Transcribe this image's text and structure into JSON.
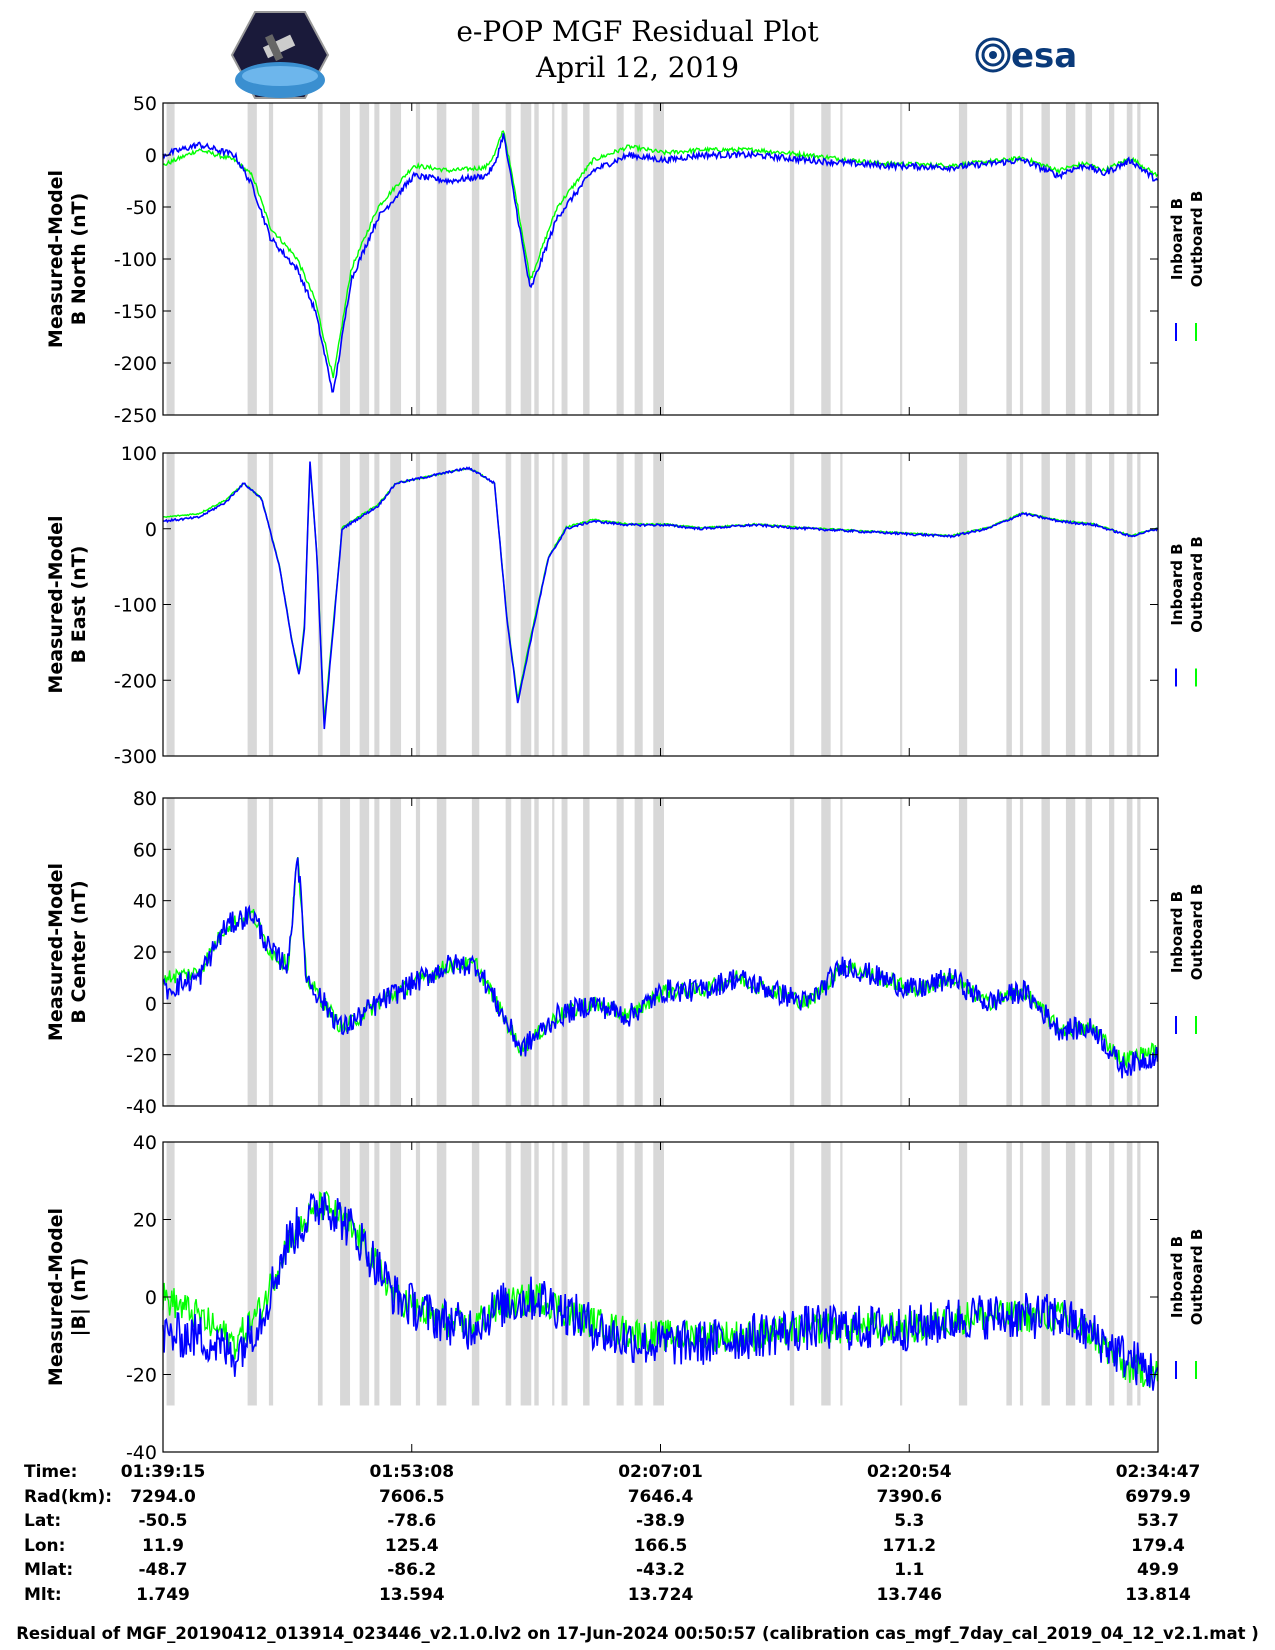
{
  "title": {
    "line1": "e-POP MGF Residual Plot",
    "line2": "April 12, 2019"
  },
  "logos": {
    "left_icon": "cassiope-mission-logo-icon",
    "right_icon": "esa-logo-icon",
    "right_text": "esa"
  },
  "colors": {
    "inboard": "#0000ff",
    "outboard": "#00ff00",
    "gap_shading": "#d8d8d8",
    "axis": "#000000"
  },
  "legend": {
    "inboard": "Inboard B",
    "outboard": "Outboard B"
  },
  "time_axis": {
    "start": "01:39:15",
    "end": "02:34:47",
    "tick_labels": [
      "01:39:15",
      "01:53:08",
      "02:07:01",
      "02:20:54",
      "02:34:47"
    ]
  },
  "chart_data": [
    {
      "type": "line",
      "ylabel": [
        "Measured-Model",
        "B North (nT)"
      ],
      "ylim": [
        -250,
        50
      ],
      "yticks": [
        50,
        0,
        -50,
        -100,
        -150,
        -200,
        -250
      ],
      "x_unit": "minutes since 01:39:15",
      "series": [
        {
          "name": "Inboard B",
          "x": [
            0,
            2,
            4,
            5,
            6,
            7.5,
            8.5,
            9.5,
            10.5,
            12,
            14,
            16,
            18,
            18.5,
            19,
            19.8,
            20.5,
            22,
            24,
            26,
            28,
            30,
            33,
            36,
            40,
            44,
            48,
            50,
            50.5,
            51.5,
            52.5,
            54,
            55.5
          ],
          "values": [
            0,
            10,
            0,
            -30,
            -80,
            -110,
            -150,
            -230,
            -120,
            -60,
            -20,
            -25,
            -20,
            -10,
            20,
            -60,
            -130,
            -60,
            -15,
            0,
            -5,
            0,
            0,
            -5,
            -10,
            -12,
            -5,
            -20,
            -15,
            -10,
            -18,
            -5,
            -25
          ]
        },
        {
          "name": "Outboard B",
          "x": [
            0,
            2,
            4,
            5,
            6,
            7.5,
            8.5,
            9.5,
            10.5,
            12,
            14,
            16,
            18,
            18.5,
            19,
            19.8,
            20.5,
            22,
            24,
            26,
            28,
            30,
            33,
            36,
            40,
            44,
            48,
            50,
            50.5,
            51.5,
            52.5,
            54,
            55.5
          ],
          "values": [
            -10,
            5,
            -5,
            -20,
            -70,
            -100,
            -140,
            -215,
            -110,
            -50,
            -10,
            -15,
            -12,
            0,
            25,
            -50,
            -120,
            -50,
            -5,
            8,
            2,
            5,
            5,
            0,
            -8,
            -10,
            -3,
            -15,
            -12,
            -8,
            -15,
            -3,
            -20
          ]
        }
      ]
    },
    {
      "type": "line",
      "ylabel": [
        "Measured-Model",
        "B East (nT)"
      ],
      "ylim": [
        -300,
        100
      ],
      "yticks": [
        100,
        0,
        -100,
        -200,
        -300
      ],
      "x_unit": "minutes since 01:39:15",
      "series": [
        {
          "name": "Inboard B",
          "x": [
            0,
            2,
            3.5,
            4.5,
            5.5,
            6.5,
            7.2,
            7.6,
            7.9,
            8.2,
            8.6,
            9,
            10,
            12,
            13,
            15,
            17,
            17.5,
            18.5,
            19.2,
            19.8,
            20.5,
            21.5,
            22.5,
            24,
            26,
            28,
            30,
            33,
            36,
            40,
            44,
            46,
            48,
            50,
            52,
            54,
            55.5
          ],
          "values": [
            10,
            15,
            35,
            60,
            40,
            -50,
            -150,
            -195,
            -130,
            90,
            -40,
            -265,
            0,
            30,
            60,
            70,
            80,
            75,
            60,
            -120,
            -230,
            -150,
            -40,
            0,
            10,
            5,
            5,
            0,
            5,
            0,
            -5,
            -10,
            0,
            20,
            10,
            5,
            -10,
            0
          ]
        },
        {
          "name": "Outboard B",
          "x": [
            0,
            2,
            3.5,
            4.5,
            5.5,
            6.5,
            7.2,
            7.6,
            7.9,
            8.2,
            8.6,
            9,
            10,
            12,
            13,
            15,
            17,
            17.5,
            18.5,
            19.2,
            19.8,
            20.5,
            21.5,
            22.5,
            24,
            26,
            28,
            30,
            33,
            36,
            40,
            44,
            46,
            48,
            50,
            52,
            54,
            55.5
          ],
          "values": [
            15,
            20,
            38,
            60,
            40,
            -48,
            -148,
            -190,
            -125,
            85,
            -38,
            -255,
            2,
            32,
            60,
            70,
            80,
            75,
            60,
            -118,
            -225,
            -145,
            -38,
            2,
            12,
            6,
            6,
            1,
            6,
            1,
            -4,
            -9,
            1,
            21,
            11,
            6,
            -9,
            1
          ]
        }
      ]
    },
    {
      "type": "line",
      "ylabel": [
        "Measured-Model",
        "B Center (nT)"
      ],
      "ylim": [
        -40,
        80
      ],
      "yticks": [
        80,
        60,
        40,
        20,
        0,
        -20,
        -40
      ],
      "x_unit": "minutes since 01:39:15",
      "series": [
        {
          "name": "Inboard B",
          "x": [
            0,
            2,
            3.5,
            5,
            6,
            7,
            7.5,
            8,
            9,
            10,
            12,
            14,
            16,
            17.5,
            19,
            20,
            22,
            24,
            26,
            28,
            30,
            32,
            34,
            36,
            38,
            40,
            42,
            44,
            46,
            48,
            50,
            52,
            53.5,
            55.5
          ],
          "values": [
            5,
            10,
            30,
            35,
            20,
            15,
            60,
            10,
            0,
            -10,
            0,
            8,
            15,
            15,
            -5,
            -18,
            -5,
            0,
            -5,
            5,
            5,
            10,
            5,
            0,
            15,
            10,
            5,
            10,
            0,
            5,
            -10,
            -10,
            -25,
            -20
          ]
        },
        {
          "name": "Outboard B",
          "x": [
            0,
            2,
            3.5,
            5,
            6,
            7,
            7.5,
            8,
            9,
            10,
            12,
            14,
            16,
            17.5,
            19,
            20,
            22,
            24,
            26,
            28,
            30,
            32,
            34,
            36,
            38,
            40,
            42,
            44,
            46,
            48,
            50,
            52,
            53.5,
            55.5
          ],
          "values": [
            10,
            12,
            30,
            35,
            20,
            15,
            58,
            10,
            0,
            -10,
            0,
            8,
            15,
            15,
            -5,
            -18,
            -5,
            0,
            -5,
            5,
            5,
            10,
            5,
            0,
            15,
            10,
            5,
            10,
            0,
            5,
            -10,
            -10,
            -22,
            -18
          ]
        }
      ]
    },
    {
      "type": "line",
      "ylabel": [
        "Measured-Model",
        "|B| (nT)"
      ],
      "ylim": [
        -40,
        40
      ],
      "yticks": [
        40,
        20,
        0,
        -20,
        -40
      ],
      "x_unit": "minutes since 01:39:15",
      "series": [
        {
          "name": "Inboard B",
          "x": [
            0,
            2,
            4,
            5.5,
            7,
            9,
            11,
            13,
            15,
            17,
            19,
            21,
            23,
            25,
            27,
            30,
            33,
            36,
            39,
            42,
            45,
            48,
            50,
            52,
            53.5,
            55.5
          ],
          "values": [
            -10,
            -10,
            -15,
            -5,
            15,
            25,
            15,
            0,
            -5,
            -8,
            -2,
            0,
            -5,
            -10,
            -12,
            -12,
            -10,
            -8,
            -8,
            -8,
            -5,
            -5,
            -5,
            -10,
            -15,
            -20
          ]
        },
        {
          "name": "Outboard B",
          "x": [
            0,
            2,
            4,
            5.5,
            7,
            9,
            11,
            13,
            15,
            17,
            19,
            21,
            23,
            25,
            27,
            30,
            33,
            36,
            39,
            42,
            45,
            48,
            50,
            52,
            53.5,
            55.5
          ],
          "values": [
            0,
            -5,
            -12,
            -3,
            15,
            24,
            15,
            0,
            -5,
            -8,
            -2,
            0,
            -5,
            -8,
            -10,
            -10,
            -10,
            -8,
            -8,
            -8,
            -5,
            -5,
            -5,
            -10,
            -18,
            -20
          ]
        }
      ]
    }
  ],
  "info": {
    "headers": [
      "Time:",
      "Rad(km):",
      "Lat:",
      "Lon:",
      "Mlat:",
      "Mlt:"
    ],
    "columns": [
      [
        "01:39:15",
        "7294.0",
        "-50.5",
        "11.9",
        "-48.7",
        "1.749"
      ],
      [
        "01:53:08",
        "7606.5",
        "-78.6",
        "125.4",
        "-86.2",
        "13.594"
      ],
      [
        "02:07:01",
        "7646.4",
        "-38.9",
        "166.5",
        "-43.2",
        "13.724"
      ],
      [
        "02:20:54",
        "7390.6",
        "5.3",
        "171.2",
        "1.1",
        "13.746"
      ],
      [
        "02:34:47",
        "6979.9",
        "53.7",
        "179.4",
        "49.9",
        "13.814"
      ]
    ]
  },
  "footer": "Residual of MGF_20190412_013914_023446_v2.1.0.lv2 on 17-Jun-2024 00:50:57 (calibration cas_mgf_7day_cal_2019_04_12_v2.1.mat )"
}
